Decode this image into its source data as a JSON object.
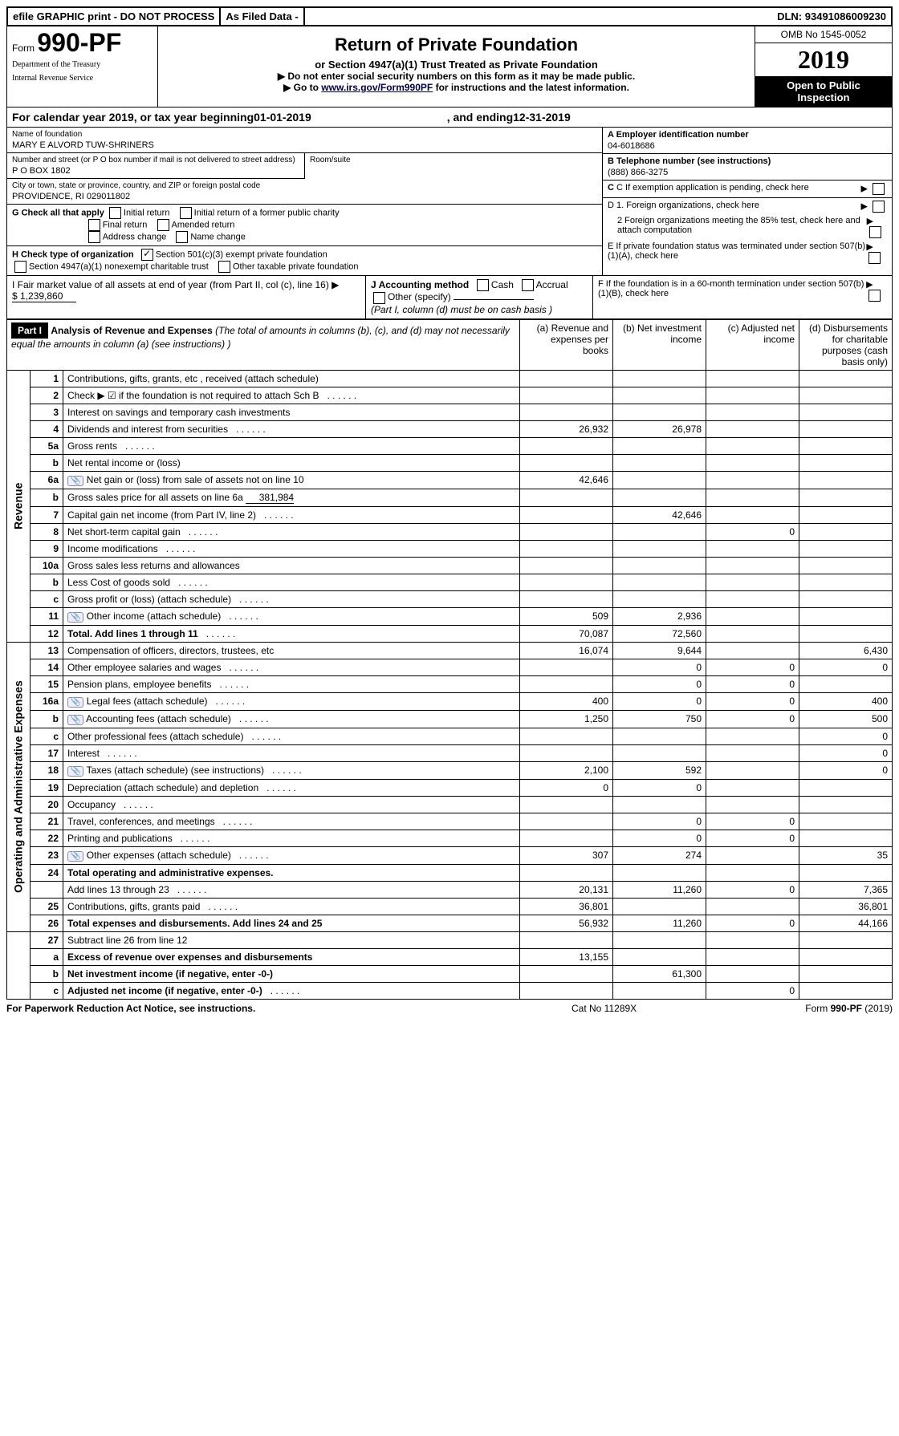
{
  "topbar": {
    "efile": "efile GRAPHIC print - DO NOT PROCESS",
    "asfiled": "As Filed Data -",
    "dln_label": "DLN:",
    "dln": "93491086009230"
  },
  "header": {
    "form_prefix": "Form",
    "form_num": "990-PF",
    "dept1": "Department of the Treasury",
    "dept2": "Internal Revenue Service",
    "title": "Return of Private Foundation",
    "subtitle": "or Section 4947(a)(1) Trust Treated as Private Foundation",
    "note1": "▶ Do not enter social security numbers on this form as it may be made public.",
    "note2_pre": "▶ Go to ",
    "note2_link": "www.irs.gov/Form990PF",
    "note2_post": " for instructions and the latest information.",
    "omb": "OMB No 1545-0052",
    "year": "2019",
    "open": "Open to Public Inspection"
  },
  "calyear": {
    "text1": "For calendar year 2019, or tax year beginning ",
    "begin": "01-01-2019",
    "text2": ", and ending ",
    "end": "12-31-2019"
  },
  "foundation": {
    "name_label": "Name of foundation",
    "name": "MARY E ALVORD TUW-SHRINERS",
    "addr_label": "Number and street (or P O  box number if mail is not delivered to street address)",
    "addr": "P O BOX 1802",
    "room_label": "Room/suite",
    "city_label": "City or town, state or province, country, and ZIP or foreign postal code",
    "city": "PROVIDENCE, RI  029011802"
  },
  "right_info": {
    "a_label": "A Employer identification number",
    "a_val": "04-6018686",
    "b_label": "B Telephone number (see instructions)",
    "b_val": "(888) 866-3275",
    "c_label": "C If exemption application is pending, check here",
    "d1": "D 1. Foreign organizations, check here",
    "d2": "2  Foreign organizations meeting the 85% test, check here and attach computation",
    "e": "E  If private foundation status was terminated under section 507(b)(1)(A), check here",
    "f": "F  If the foundation is in a 60-month termination under section 507(b)(1)(B), check here"
  },
  "g": {
    "label": "G Check all that apply",
    "opts": [
      "Initial return",
      "Initial return of a former public charity",
      "Final return",
      "Amended return",
      "Address change",
      "Name change"
    ]
  },
  "h": {
    "label": "H Check type of organization",
    "opt1": "Section 501(c)(3) exempt private foundation",
    "opt2": "Section 4947(a)(1) nonexempt charitable trust",
    "opt3": "Other taxable private foundation"
  },
  "i": {
    "label": "I Fair market value of all assets at end of year (from Part II, col  (c), line 16) ▶",
    "val": "$  1,239,860"
  },
  "j": {
    "label": "J Accounting method",
    "cash": "Cash",
    "accrual": "Accrual",
    "other": "Other (specify)",
    "note": "(Part I, column (d) must be on cash basis )"
  },
  "part1_header": {
    "part": "Part I",
    "title": "Analysis of Revenue and Expenses",
    "note": " (The total of amounts in columns (b), (c), and (d) may not necessarily equal the amounts in column (a) (see instructions) )",
    "col_a": "(a)  Revenue and expenses per books",
    "col_b": "(b)  Net investment income",
    "col_c": "(c)  Adjusted net income",
    "col_d": "(d)  Disbursements for charitable purposes (cash basis only)"
  },
  "revenue_label": "Revenue",
  "expenses_label": "Operating and Administrative Expenses",
  "rows": [
    {
      "n": "1",
      "desc": "Contributions, gifts, grants, etc , received (attach schedule)"
    },
    {
      "n": "2",
      "desc": "Check ▶ ☑ if the foundation is not required to attach Sch  B",
      "dots": true,
      "bold_not": true
    },
    {
      "n": "3",
      "desc": "Interest on savings and temporary cash investments"
    },
    {
      "n": "4",
      "desc": "Dividends and interest from securities",
      "dots": true,
      "a": "26,932",
      "b": "26,978"
    },
    {
      "n": "5a",
      "desc": "Gross rents",
      "dots": true
    },
    {
      "n": "b",
      "desc": "Net rental income or (loss)",
      "sub": true
    },
    {
      "n": "6a",
      "desc": "Net gain or (loss) from sale of assets not on line 10",
      "icon": true,
      "a": "42,646"
    },
    {
      "n": "b",
      "desc": "Gross sales price for all assets on line 6a",
      "sub": true,
      "subval": "381,984"
    },
    {
      "n": "7",
      "desc": "Capital gain net income (from Part IV, line 2)",
      "dots": true,
      "b": "42,646"
    },
    {
      "n": "8",
      "desc": "Net short-term capital gain",
      "dots": true,
      "c": "0"
    },
    {
      "n": "9",
      "desc": "Income modifications",
      "dots": true
    },
    {
      "n": "10a",
      "desc": "Gross sales less returns and allowances",
      "sub": true
    },
    {
      "n": "b",
      "desc": "Less  Cost of goods sold",
      "dots": true,
      "sub": true
    },
    {
      "n": "c",
      "desc": "Gross profit or (loss) (attach schedule)",
      "dots": true
    },
    {
      "n": "11",
      "desc": "Other income (attach schedule)",
      "dots": true,
      "icon": true,
      "a": "509",
      "b": "2,936"
    },
    {
      "n": "12",
      "desc": "Total. Add lines 1 through 11",
      "dots": true,
      "bold": true,
      "a": "70,087",
      "b": "72,560"
    }
  ],
  "exp_rows": [
    {
      "n": "13",
      "desc": "Compensation of officers, directors, trustees, etc",
      "a": "16,074",
      "b": "9,644",
      "c": "",
      "d": "6,430"
    },
    {
      "n": "14",
      "desc": "Other employee salaries and wages",
      "dots": true,
      "b": "0",
      "c": "0",
      "d": "0"
    },
    {
      "n": "15",
      "desc": "Pension plans, employee benefits",
      "dots": true,
      "b": "0",
      "c": "0"
    },
    {
      "n": "16a",
      "desc": "Legal fees (attach schedule)",
      "dots": true,
      "icon": true,
      "a": "400",
      "b": "0",
      "c": "0",
      "d": "400"
    },
    {
      "n": "b",
      "desc": "Accounting fees (attach schedule)",
      "dots": true,
      "icon": true,
      "a": "1,250",
      "b": "750",
      "c": "0",
      "d": "500"
    },
    {
      "n": "c",
      "desc": "Other professional fees (attach schedule)",
      "dots": true,
      "d": "0"
    },
    {
      "n": "17",
      "desc": "Interest",
      "dots": true,
      "d": "0"
    },
    {
      "n": "18",
      "desc": "Taxes (attach schedule) (see instructions)",
      "dots": true,
      "icon": true,
      "a": "2,100",
      "b": "592",
      "d": "0"
    },
    {
      "n": "19",
      "desc": "Depreciation (attach schedule) and depletion",
      "dots": true,
      "a": "0",
      "b": "0"
    },
    {
      "n": "20",
      "desc": "Occupancy",
      "dots": true
    },
    {
      "n": "21",
      "desc": "Travel, conferences, and meetings",
      "dots": true,
      "b": "0",
      "c": "0"
    },
    {
      "n": "22",
      "desc": "Printing and publications",
      "dots": true,
      "b": "0",
      "c": "0"
    },
    {
      "n": "23",
      "desc": "Other expenses (attach schedule)",
      "dots": true,
      "icon": true,
      "a": "307",
      "b": "274",
      "d": "35"
    },
    {
      "n": "24",
      "desc": "Total operating and administrative expenses.",
      "bold": true
    },
    {
      "n": "",
      "desc": "Add lines 13 through 23",
      "dots": true,
      "a": "20,131",
      "b": "11,260",
      "c": "0",
      "d": "7,365"
    },
    {
      "n": "25",
      "desc": "Contributions, gifts, grants paid",
      "dots": true,
      "a": "36,801",
      "d": "36,801"
    },
    {
      "n": "26",
      "desc": "Total expenses and disbursements. Add lines 24 and 25",
      "bold": true,
      "a": "56,932",
      "b": "11,260",
      "c": "0",
      "d": "44,166"
    }
  ],
  "final_rows": [
    {
      "n": "27",
      "desc": "Subtract line 26 from line 12"
    },
    {
      "n": "a",
      "desc": "Excess of revenue over expenses and disbursements",
      "bold": true,
      "a": "13,155"
    },
    {
      "n": "b",
      "desc": "Net investment income (if negative, enter -0-)",
      "bold": true,
      "b": "61,300"
    },
    {
      "n": "c",
      "desc": "Adjusted net income (if negative, enter -0-)",
      "bold": true,
      "dots": true,
      "c": "0"
    }
  ],
  "footer": {
    "left": "For Paperwork Reduction Act Notice, see instructions.",
    "mid": "Cat  No  11289X",
    "right": "Form 990-PF (2019)"
  }
}
